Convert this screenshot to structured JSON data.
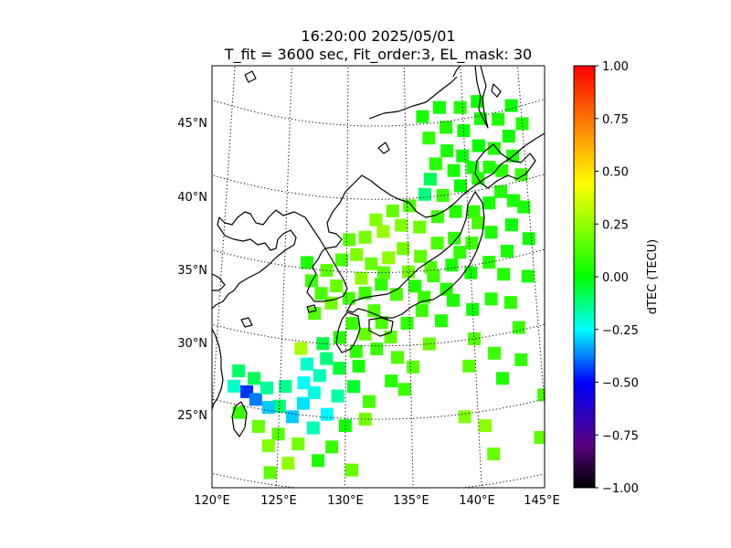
{
  "title": {
    "line1": "16:20:00 2025/05/01",
    "line2": "T_fit = 3600 sec, Fit_order:3, EL_mask: 30"
  },
  "map": {
    "lat_labels": [
      {
        "value": 45,
        "text": "45°N"
      },
      {
        "value": 40,
        "text": "40°N"
      },
      {
        "value": 35,
        "text": "35°N"
      },
      {
        "value": 30,
        "text": "30°N"
      },
      {
        "value": 25,
        "text": "25°N"
      }
    ],
    "lon_labels": [
      {
        "value": 120,
        "text": "120°E"
      },
      {
        "value": 125,
        "text": "125°E"
      },
      {
        "value": 130,
        "text": "130°E"
      },
      {
        "value": 135,
        "text": "135°E"
      },
      {
        "value": 140,
        "text": "140°E"
      },
      {
        "value": 145,
        "text": "145°E"
      }
    ],
    "lon_range": [
      120,
      145
    ],
    "lat_range": [
      20,
      49
    ],
    "graticule": "dotted",
    "coast_color": "#000000"
  },
  "colorbar": {
    "label": "dTEC (TECU)",
    "range": [
      -1.0,
      1.0
    ],
    "ticks": [
      "1.00",
      "0.75",
      "0.50",
      "0.25",
      "0.00",
      "−0.25",
      "−0.50",
      "−0.75",
      "−1.00"
    ],
    "colormap": [
      "#000000",
      "#5a0080",
      "#0000ff",
      "#00ffff",
      "#00ff00",
      "#ffff00",
      "#ff7f00",
      "#ff0000"
    ]
  },
  "chart_data": {
    "type": "heatmap",
    "value_units": "TECU",
    "value_range": [
      -1.0,
      1.0
    ],
    "points": [
      {
        "lon": 121.5,
        "lat": 26.2,
        "v": -0.2
      },
      {
        "lon": 122.5,
        "lat": 26.0,
        "v": -0.45
      },
      {
        "lon": 123.2,
        "lat": 25.6,
        "v": -0.38
      },
      {
        "lon": 124.0,
        "lat": 26.5,
        "v": -0.15
      },
      {
        "lon": 125.0,
        "lat": 25.4,
        "v": -0.1
      },
      {
        "lon": 126.0,
        "lat": 24.8,
        "v": -0.3
      },
      {
        "lon": 126.8,
        "lat": 25.8,
        "v": -0.28
      },
      {
        "lon": 127.6,
        "lat": 26.6,
        "v": -0.22
      },
      {
        "lon": 128.0,
        "lat": 27.8,
        "v": -0.18
      },
      {
        "lon": 127.0,
        "lat": 28.5,
        "v": -0.2
      },
      {
        "lon": 126.5,
        "lat": 29.5,
        "v": 0.3
      },
      {
        "lon": 128.5,
        "lat": 29.0,
        "v": -0.12
      },
      {
        "lon": 129.5,
        "lat": 28.4,
        "v": -0.05
      },
      {
        "lon": 121.8,
        "lat": 27.3,
        "v": -0.1
      },
      {
        "lon": 123.0,
        "lat": 27.0,
        "v": -0.08
      },
      {
        "lon": 122.0,
        "lat": 24.5,
        "v": 0.1
      },
      {
        "lon": 123.5,
        "lat": 23.8,
        "v": 0.18
      },
      {
        "lon": 125.0,
        "lat": 23.5,
        "v": 0.14
      },
      {
        "lon": 126.5,
        "lat": 23.0,
        "v": 0.2
      },
      {
        "lon": 124.3,
        "lat": 22.6,
        "v": 0.22
      },
      {
        "lon": 125.8,
        "lat": 21.6,
        "v": 0.25
      },
      {
        "lon": 128.0,
        "lat": 22.0,
        "v": 0.05
      },
      {
        "lon": 129.0,
        "lat": 23.0,
        "v": 0.1
      },
      {
        "lon": 130.5,
        "lat": 21.5,
        "v": 0.18
      },
      {
        "lon": 124.5,
        "lat": 20.8,
        "v": 0.16
      },
      {
        "lon": 130.0,
        "lat": 24.5,
        "v": 0.02
      },
      {
        "lon": 131.5,
        "lat": 25.0,
        "v": 0.2
      },
      {
        "lon": 131.8,
        "lat": 26.2,
        "v": 0.12
      },
      {
        "lon": 133.5,
        "lat": 27.6,
        "v": 0.06
      },
      {
        "lon": 134.5,
        "lat": 27.0,
        "v": 0.1
      },
      {
        "lon": 139.0,
        "lat": 24.8,
        "v": 0.22
      },
      {
        "lon": 140.5,
        "lat": 24.0,
        "v": 0.24
      },
      {
        "lon": 141.0,
        "lat": 22.0,
        "v": 0.18
      },
      {
        "lon": 144.5,
        "lat": 22.5,
        "v": 0.16
      },
      {
        "lon": 145.0,
        "lat": 25.3,
        "v": 0.12
      },
      {
        "lon": 142.0,
        "lat": 27.0,
        "v": 0.05
      },
      {
        "lon": 143.5,
        "lat": 28.0,
        "v": 0.08
      },
      {
        "lon": 141.5,
        "lat": 28.8,
        "v": 0.1
      },
      {
        "lon": 139.5,
        "lat": 28.2,
        "v": 0.15
      },
      {
        "lon": 140.0,
        "lat": 30.0,
        "v": 0.14
      },
      {
        "lon": 143.5,
        "lat": 30.2,
        "v": 0.1
      },
      {
        "lon": 136.5,
        "lat": 30.0,
        "v": 0.18
      },
      {
        "lon": 129.5,
        "lat": 30.5,
        "v": 0.06
      },
      {
        "lon": 130.5,
        "lat": 31.5,
        "v": 0.1
      },
      {
        "lon": 131.5,
        "lat": 30.8,
        "v": 0.18
      },
      {
        "lon": 132.8,
        "lat": 31.6,
        "v": 0.12
      },
      {
        "lon": 133.5,
        "lat": 30.6,
        "v": 0.16
      },
      {
        "lon": 134.8,
        "lat": 31.5,
        "v": 0.08
      },
      {
        "lon": 136.0,
        "lat": 32.3,
        "v": 0.1
      },
      {
        "lon": 137.5,
        "lat": 31.5,
        "v": 0.06
      },
      {
        "lon": 138.5,
        "lat": 32.8,
        "v": 0.04
      },
      {
        "lon": 140.0,
        "lat": 32.0,
        "v": 0.02
      },
      {
        "lon": 141.5,
        "lat": 32.5,
        "v": 0.06
      },
      {
        "lon": 143.0,
        "lat": 32.0,
        "v": 0.08
      },
      {
        "lon": 144.5,
        "lat": 33.5,
        "v": 0.05
      },
      {
        "lon": 127.5,
        "lat": 32.0,
        "v": 0.14
      },
      {
        "lon": 128.8,
        "lat": 32.8,
        "v": 0.2
      },
      {
        "lon": 130.2,
        "lat": 33.2,
        "v": 0.12
      },
      {
        "lon": 131.5,
        "lat": 33.6,
        "v": 0.1
      },
      {
        "lon": 132.8,
        "lat": 34.2,
        "v": 0.08
      },
      {
        "lon": 134.0,
        "lat": 33.5,
        "v": 0.12
      },
      {
        "lon": 135.5,
        "lat": 34.0,
        "v": 0.06
      },
      {
        "lon": 137.0,
        "lat": 34.6,
        "v": 0.1
      },
      {
        "lon": 138.5,
        "lat": 35.2,
        "v": 0.04
      },
      {
        "lon": 140.0,
        "lat": 34.5,
        "v": 0.02
      },
      {
        "lon": 141.5,
        "lat": 35.0,
        "v": 0.06
      },
      {
        "lon": 143.0,
        "lat": 35.5,
        "v": 0.04
      },
      {
        "lon": 144.8,
        "lat": 36.0,
        "v": 0.03
      },
      {
        "lon": 127.2,
        "lat": 34.2,
        "v": 0.1
      },
      {
        "lon": 126.8,
        "lat": 35.4,
        "v": 0.05
      },
      {
        "lon": 128.4,
        "lat": 35.0,
        "v": 0.16
      },
      {
        "lon": 129.6,
        "lat": 35.8,
        "v": 0.12
      },
      {
        "lon": 130.8,
        "lat": 36.2,
        "v": 0.22
      },
      {
        "lon": 132.0,
        "lat": 35.6,
        "v": 0.18
      },
      {
        "lon": 133.4,
        "lat": 36.0,
        "v": 0.24
      },
      {
        "lon": 134.6,
        "lat": 36.6,
        "v": 0.2
      },
      {
        "lon": 136.0,
        "lat": 36.0,
        "v": 0.16
      },
      {
        "lon": 137.4,
        "lat": 36.8,
        "v": 0.12
      },
      {
        "lon": 138.8,
        "lat": 37.0,
        "v": 0.08
      },
      {
        "lon": 140.2,
        "lat": 36.5,
        "v": 0.1
      },
      {
        "lon": 141.8,
        "lat": 37.0,
        "v": 0.05
      },
      {
        "lon": 143.5,
        "lat": 37.2,
        "v": 0.02
      },
      {
        "lon": 144.6,
        "lat": 38.2,
        "v": 0.04
      },
      {
        "lon": 131.5,
        "lat": 37.4,
        "v": 0.2
      },
      {
        "lon": 133.0,
        "lat": 37.8,
        "v": 0.26
      },
      {
        "lon": 134.5,
        "lat": 38.2,
        "v": 0.22
      },
      {
        "lon": 136.0,
        "lat": 38.0,
        "v": 0.18
      },
      {
        "lon": 137.5,
        "lat": 38.6,
        "v": 0.1
      },
      {
        "lon": 139.0,
        "lat": 38.8,
        "v": 0.06
      },
      {
        "lon": 140.5,
        "lat": 38.6,
        "v": 0.08
      },
      {
        "lon": 141.8,
        "lat": 39.0,
        "v": 0.04
      },
      {
        "lon": 135.2,
        "lat": 39.5,
        "v": 0.14
      },
      {
        "lon": 136.5,
        "lat": 40.2,
        "v": -0.12
      },
      {
        "lon": 137.0,
        "lat": 41.2,
        "v": -0.08
      },
      {
        "lon": 138.0,
        "lat": 40.0,
        "v": 0.1
      },
      {
        "lon": 139.5,
        "lat": 40.5,
        "v": 0.02
      },
      {
        "lon": 141.0,
        "lat": 40.8,
        "v": 0.06
      },
      {
        "lon": 143.0,
        "lat": 41.0,
        "v": 0.08
      },
      {
        "lon": 144.6,
        "lat": 40.4,
        "v": 0.1
      },
      {
        "lon": 137.5,
        "lat": 42.2,
        "v": 0.06
      },
      {
        "lon": 138.5,
        "lat": 43.0,
        "v": 0.04
      },
      {
        "lon": 139.8,
        "lat": 42.5,
        "v": 0.02
      },
      {
        "lon": 141.2,
        "lat": 43.0,
        "v": 0.0
      },
      {
        "lon": 142.5,
        "lat": 42.6,
        "v": 0.05
      },
      {
        "lon": 143.8,
        "lat": 43.2,
        "v": 0.03
      },
      {
        "lon": 137.0,
        "lat": 44.0,
        "v": 0.08
      },
      {
        "lon": 138.5,
        "lat": 44.6,
        "v": 0.06
      },
      {
        "lon": 140.0,
        "lat": 44.2,
        "v": 0.02
      },
      {
        "lon": 141.5,
        "lat": 44.8,
        "v": 0.04
      },
      {
        "lon": 143.0,
        "lat": 44.5,
        "v": 0.05
      },
      {
        "lon": 144.2,
        "lat": 45.2,
        "v": 0.02
      },
      {
        "lon": 136.5,
        "lat": 45.5,
        "v": 0.04
      },
      {
        "lon": 138.0,
        "lat": 46.0,
        "v": 0.03
      },
      {
        "lon": 139.8,
        "lat": 45.8,
        "v": 0.06
      },
      {
        "lon": 141.3,
        "lat": 46.0,
        "v": 0.02
      },
      {
        "lon": 145.0,
        "lat": 43.8,
        "v": 0.05
      },
      {
        "lon": 140.8,
        "lat": 37.8,
        "v": 0.12
      },
      {
        "lon": 139.2,
        "lat": 36.0,
        "v": 0.08
      },
      {
        "lon": 136.8,
        "lat": 35.2,
        "v": 0.14
      },
      {
        "lon": 135.0,
        "lat": 35.0,
        "v": 0.2
      },
      {
        "lon": 133.0,
        "lat": 35.0,
        "v": 0.15
      },
      {
        "lon": 131.2,
        "lat": 34.6,
        "v": 0.24
      },
      {
        "lon": 129.2,
        "lat": 34.0,
        "v": 0.18
      },
      {
        "lon": 128.0,
        "lat": 33.4,
        "v": 0.12
      },
      {
        "lon": 138.0,
        "lat": 33.6,
        "v": 0.06
      },
      {
        "lon": 136.2,
        "lat": 33.2,
        "v": 0.1
      },
      {
        "lon": 132.2,
        "lat": 32.4,
        "v": 0.14
      },
      {
        "lon": 130.8,
        "lat": 29.6,
        "v": 0.08
      },
      {
        "lon": 128.2,
        "lat": 30.0,
        "v": -0.06
      },
      {
        "lon": 126.8,
        "lat": 27.2,
        "v": -0.24
      },
      {
        "lon": 125.4,
        "lat": 26.8,
        "v": -0.14
      },
      {
        "lon": 124.2,
        "lat": 25.2,
        "v": -0.3
      },
      {
        "lon": 127.6,
        "lat": 24.2,
        "v": -0.18
      },
      {
        "lon": 128.6,
        "lat": 25.2,
        "v": -0.26
      },
      {
        "lon": 129.4,
        "lat": 26.5,
        "v": -0.16
      },
      {
        "lon": 130.6,
        "lat": 27.2,
        "v": -0.04
      },
      {
        "lon": 131.0,
        "lat": 28.6,
        "v": 0.04
      },
      {
        "lon": 132.4,
        "lat": 29.8,
        "v": 0.1
      },
      {
        "lon": 134.0,
        "lat": 29.2,
        "v": 0.14
      },
      {
        "lon": 135.2,
        "lat": 28.5,
        "v": 0.16
      },
      {
        "lon": 142.6,
        "lat": 34.0,
        "v": 0.06
      },
      {
        "lon": 143.8,
        "lat": 38.8,
        "v": 0.04
      },
      {
        "lon": 142.8,
        "lat": 39.6,
        "v": 0.06
      },
      {
        "lon": 144.0,
        "lat": 41.8,
        "v": 0.05
      },
      {
        "lon": 139.0,
        "lat": 41.6,
        "v": 0.04
      },
      {
        "lon": 140.6,
        "lat": 41.6,
        "v": 0.03
      },
      {
        "lon": 142.0,
        "lat": 41.4,
        "v": 0.06
      },
      {
        "lon": 133.8,
        "lat": 39.2,
        "v": 0.18
      },
      {
        "lon": 132.4,
        "lat": 38.6,
        "v": 0.22
      },
      {
        "lon": 130.2,
        "lat": 37.2,
        "v": 0.16
      }
    ]
  }
}
